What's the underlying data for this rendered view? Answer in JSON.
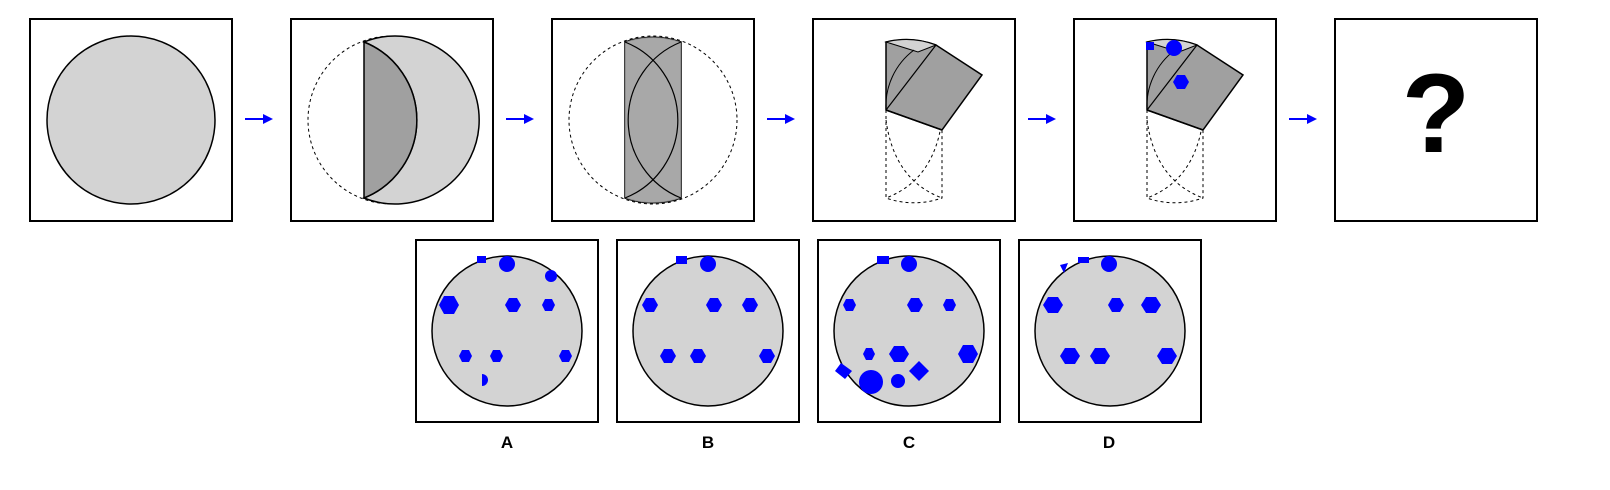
{
  "puzzle": {
    "question_mark": "?",
    "option_labels": [
      "A",
      "B",
      "C",
      "D"
    ]
  },
  "colors": {
    "paper": "#d3d3d3",
    "fold": "#a0a0a0",
    "punch": "#0000ff",
    "arrow": "#0000ff",
    "outline": "#000000"
  }
}
